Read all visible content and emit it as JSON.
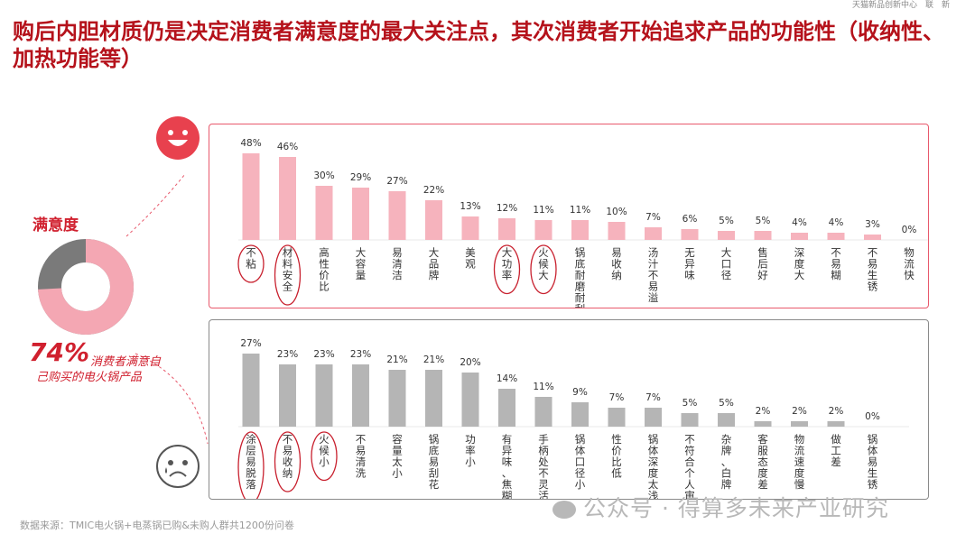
{
  "title": "购后内胆材质仍是决定消费者满意度的最大关注点，其次消费者开始追求产品的功能性（收纳性、加热功能等）",
  "header_right": "天猫新品创新中心　联　新",
  "satisfaction_label": "满意度",
  "stat": {
    "value": "74%",
    "text": "消费者满意自己购买的电火锅产品"
  },
  "donut": {
    "satisfied_pct": 74,
    "colors": {
      "satisfied": "#f4a7b3",
      "other": "#7a7a7a"
    }
  },
  "source": "数据来源：TMIC电火锅+电蒸锅已购&未购人群共1200份问卷",
  "watermark": "公众号 · 得算多未来产业研究",
  "colors": {
    "positive_bar": "#f6b3bd",
    "negative_bar": "#b5b5b5",
    "positive_frame": "#e8596c",
    "negative_frame": "#8a8a8a",
    "circle": "#c8202e"
  },
  "icons": {
    "satisfied": "smiling-face-icon",
    "dissatisfied": "crying-face-icon"
  },
  "chart_data": [
    {
      "type": "bar",
      "categories": [
        "不粘",
        "材料安全",
        "高性价比",
        "大容量",
        "易清洁",
        "大品牌",
        "美观",
        "大功率",
        "火候大",
        "锅底耐磨耐刮",
        "易收纳",
        "汤汁不易溢",
        "无异味",
        "大口径",
        "售后好",
        "深度大",
        "不易糊",
        "不易生锈",
        "物流快"
      ],
      "values": [
        48,
        46,
        30,
        29,
        27,
        22,
        13,
        12,
        11,
        11,
        10,
        7,
        6,
        5,
        5,
        4,
        4,
        3,
        0
      ],
      "data_labels": [
        "48%",
        "46%",
        "30%",
        "29%",
        "27%",
        "22%",
        "13%",
        "12%",
        "11%",
        "11%",
        "10%",
        "7%",
        "6%",
        "5%",
        "5%",
        "4%",
        "4%",
        "3%",
        "0%"
      ],
      "highlighted": [
        "不粘",
        "材料安全",
        "大功率",
        "火候大"
      ],
      "ylim": [
        0,
        50
      ]
    },
    {
      "type": "bar",
      "categories": [
        "涂层易脱落",
        "不易收纳",
        "火候小",
        "不易清洗",
        "容量太小",
        "锅底易刮花",
        "功率小",
        "有异味、焦糊味",
        "手柄处不灵活",
        "锅体口径小",
        "性价比低",
        "锅体深度太浅",
        "不符合个人审美",
        "杂牌、白牌",
        "客服态度差",
        "物流速度慢",
        "做工差",
        "锅体易生锈"
      ],
      "values": [
        27,
        23,
        23,
        23,
        21,
        21,
        20,
        14,
        11,
        9,
        7,
        7,
        5,
        5,
        2,
        2,
        2,
        0
      ],
      "data_labels": [
        "27%",
        "23%",
        "23%",
        "23%",
        "21%",
        "21%",
        "20%",
        "14%",
        "11%",
        "9%",
        "7%",
        "7%",
        "5%",
        "5%",
        "2%",
        "2%",
        "2%",
        "0%"
      ],
      "highlighted": [
        "涂层易脱落",
        "不易收纳",
        "火候小"
      ],
      "ylim": [
        0,
        30
      ]
    }
  ]
}
